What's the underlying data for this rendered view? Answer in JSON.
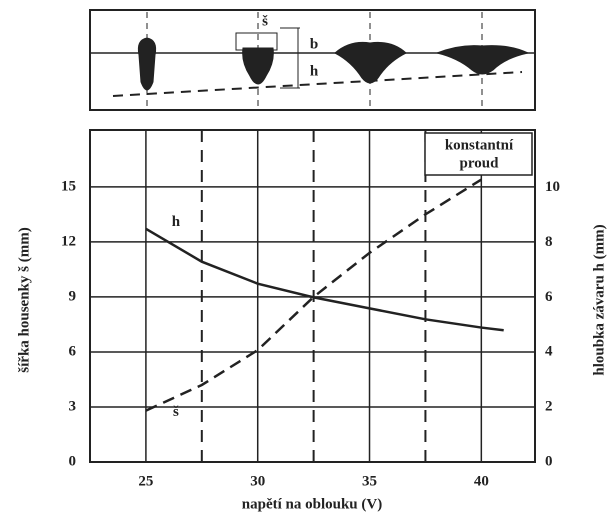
{
  "chart_data": {
    "type": "line",
    "xlabel": "napětí na oblouku (V)",
    "ylabel": "šířka housenky š (mm)",
    "y2label": "hloubka závaru  h (mm)",
    "x": [
      25,
      27.5,
      30,
      32.5,
      35,
      37.5,
      40,
      41
    ],
    "series": [
      {
        "name": "h",
        "color": "#222222",
        "dash": false,
        "axis": "y2",
        "values": [
          8.5,
          7.3,
          6.5,
          6.0,
          5.6,
          5.2,
          4.9,
          4.8
        ]
      },
      {
        "name": "š",
        "color": "#222222",
        "dash": true,
        "values": [
          2.8,
          4.2,
          6.1,
          9.0,
          11.4,
          13.5,
          15.4,
          null
        ]
      }
    ],
    "xlim": [
      22.5,
      42.4
    ],
    "xticks": [
      25,
      30,
      35,
      40
    ],
    "ylim": [
      0,
      18.1
    ],
    "yticks": [
      0,
      3,
      6,
      9,
      12,
      15
    ],
    "y2lim": [
      0,
      12.1
    ],
    "y2ticks": [
      0,
      2,
      4,
      6,
      8,
      10
    ],
    "dashed_x": [
      27.5,
      32.5,
      37.5
    ],
    "grid": true,
    "annotation": [
      "konstantní",
      "proud"
    ],
    "diagram_labels": [
      "š",
      "b",
      "h"
    ]
  }
}
